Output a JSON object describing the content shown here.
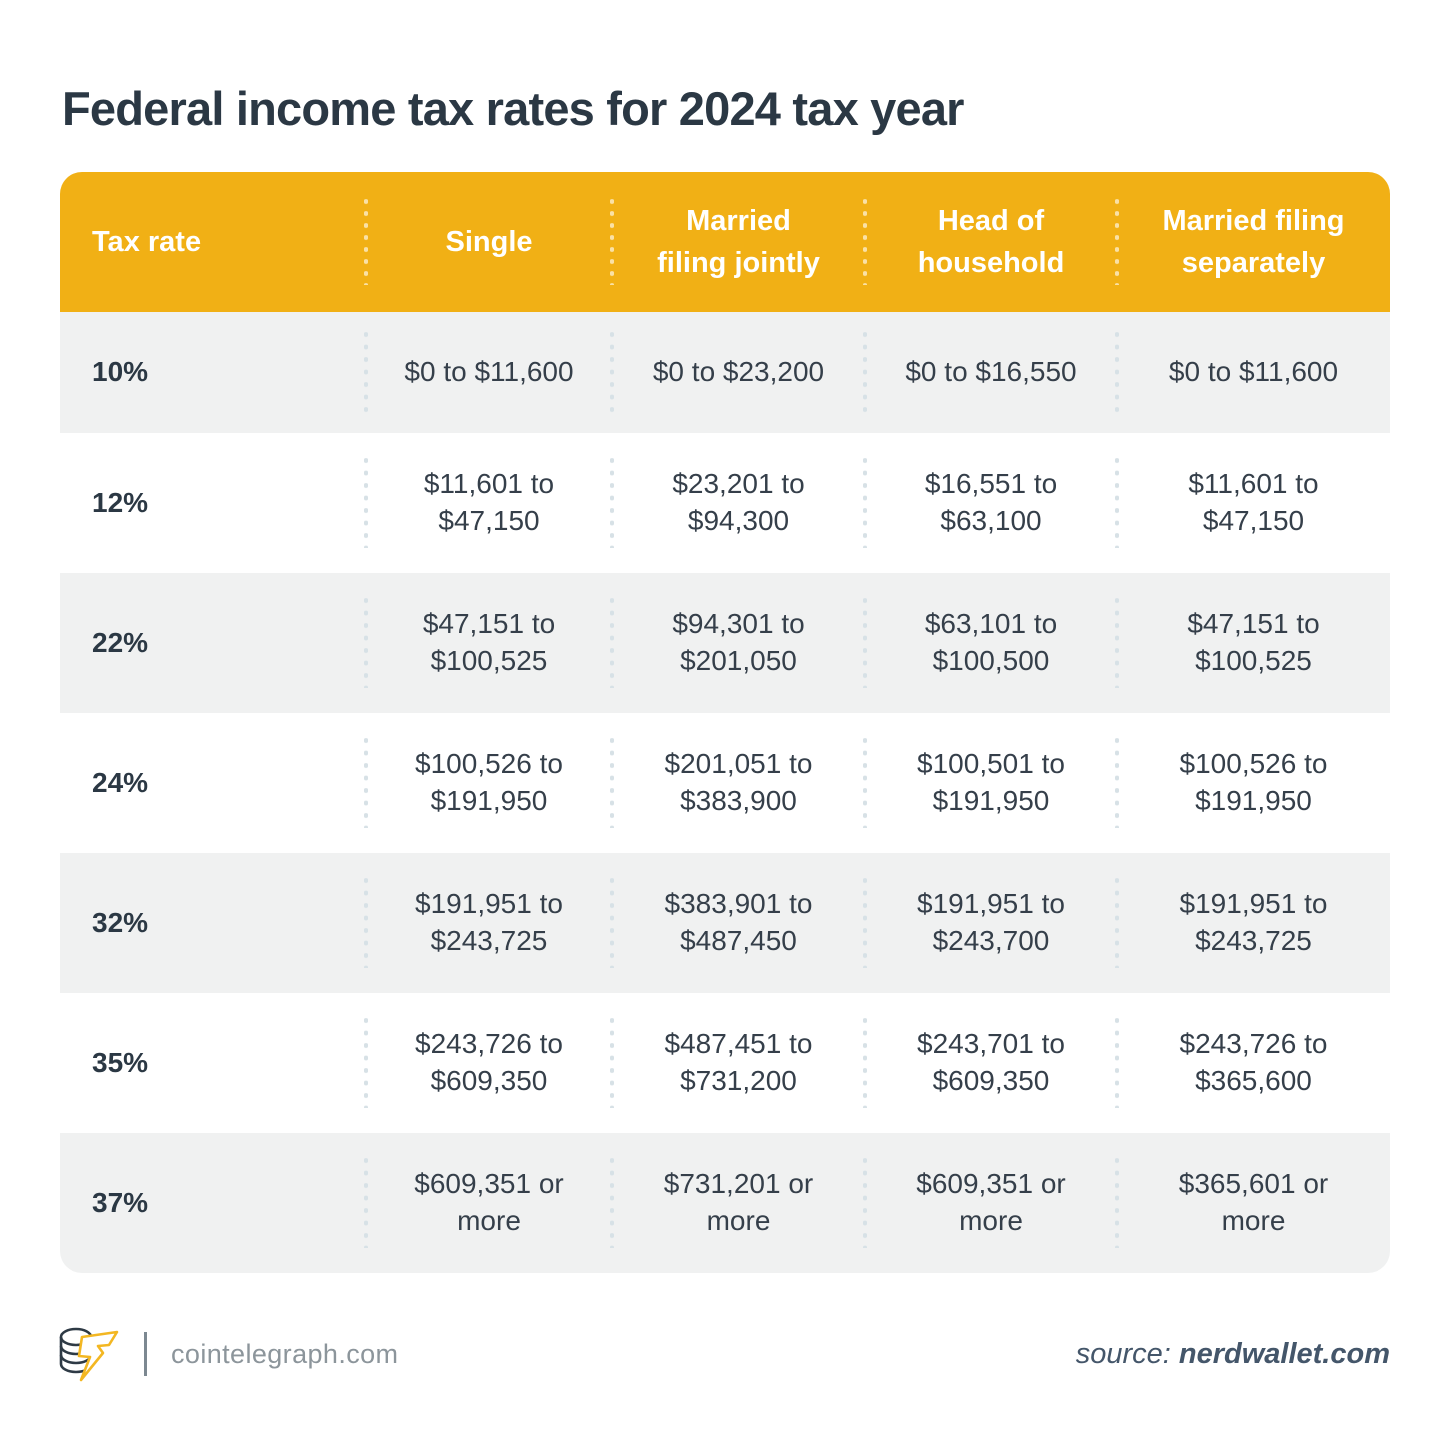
{
  "title": "Federal income tax rates for 2024 tax year",
  "chart_data": {
    "type": "table",
    "title": "Federal income tax rates for 2024 tax year",
    "columns": [
      "Tax rate",
      "Single",
      "Married\nfiling jointly",
      "Head of\nhousehold",
      "Married filing\nseparately"
    ],
    "rows": [
      {
        "rate": "10%",
        "values": [
          "$0 to $11,600",
          "$0 to $23,200",
          "$0 to $16,550",
          "$0 to $11,600"
        ]
      },
      {
        "rate": "12%",
        "values": [
          "$11,601 to $47,150",
          "$23,201 to $94,300",
          "$16,551 to $63,100",
          "$11,601 to $47,150"
        ]
      },
      {
        "rate": "22%",
        "values": [
          "$47,151 to $100,525",
          "$94,301 to $201,050",
          "$63,101 to $100,500",
          "$47,151 to $100,525"
        ]
      },
      {
        "rate": "24%",
        "values": [
          "$100,526 to $191,950",
          "$201,051 to $383,900",
          "$100,501 to $191,950",
          "$100,526 to $191,950"
        ]
      },
      {
        "rate": "32%",
        "values": [
          "$191,951 to $243,725",
          "$383,901 to $487,450",
          "$191,951 to $243,700",
          "$191,951 to $243,725"
        ]
      },
      {
        "rate": "35%",
        "values": [
          "$243,726 to $609,350",
          "$487,451 to $731,200",
          "$243,701 to $609,350",
          "$243,726 to $365,600"
        ]
      },
      {
        "rate": "37%",
        "values": [
          "$609,351 or more",
          "$731,201 or more",
          "$609,351 or more",
          "$365,601 or more"
        ]
      }
    ],
    "legend_position": "none",
    "grid": "row-striping"
  },
  "footer": {
    "logo_icon": "cointelegraph-coins-bolt-icon",
    "site": "cointelegraph.com",
    "source_prefix": "source: ",
    "source_name": "nerdwallet.com"
  },
  "colors": {
    "header_bg": "#F1B015",
    "row_alt_bg": "#F0F1F1",
    "row_bg": "#FFFFFF",
    "text_dark": "#2B3844",
    "text_body": "#353F4A",
    "divider_dots": "#D7E1E6",
    "footer_gray": "#8C959B",
    "source_slate": "#44566A"
  }
}
